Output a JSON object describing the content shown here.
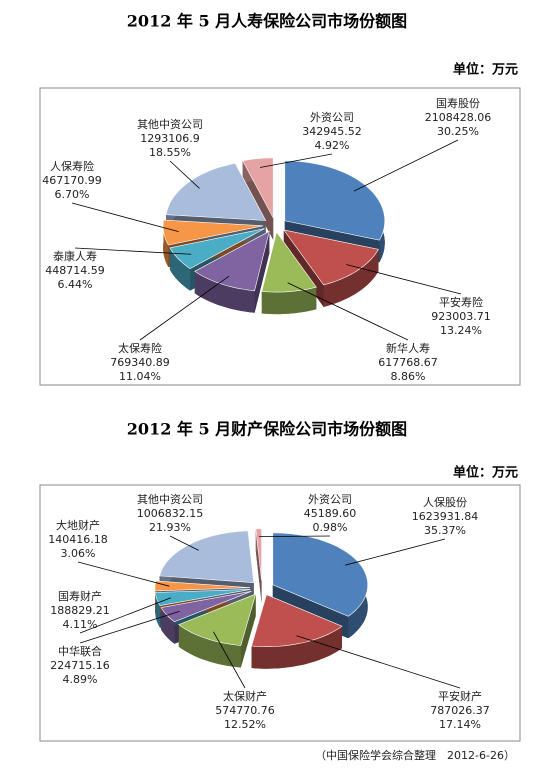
{
  "chart_data": [
    {
      "type": "pie",
      "title": "2012 年 5 月人寿保险公司市场份额图",
      "unit": "单位：万元",
      "labels": [
        "国寿股份",
        "平安寿险",
        "新华人寿",
        "太保寿险",
        "泰康人寿",
        "人保寿险",
        "其他中资公司",
        "外资公司"
      ],
      "values": [
        2108428.06,
        923003.71,
        617768.67,
        769340.89,
        448714.59,
        467170.99,
        1293106.9,
        342945.52
      ],
      "percents": [
        30.25,
        13.24,
        8.86,
        11.04,
        6.44,
        6.7,
        18.55,
        4.92
      ],
      "percent_labels": [
        "30.25%",
        "13.24%",
        "8.86%",
        "11.04%",
        "6.44%",
        "6.70%",
        "18.55%",
        "4.92%"
      ],
      "colors": [
        "#4f81bd",
        "#c0504d",
        "#9bbb59",
        "#8064a2",
        "#4bacc6",
        "#f79646",
        "#a9bcdc",
        "#e6a3a3"
      ]
    },
    {
      "type": "pie",
      "title": "2012 年 5 月财产保险公司市场份额图",
      "unit": "单位：万元",
      "labels": [
        "人保股份",
        "平安财产",
        "太保财产",
        "中华联合",
        "国寿财产",
        "大地财产",
        "其他中资公司",
        "外资公司"
      ],
      "values": [
        1623931.84,
        787026.37,
        574770.76,
        224715.16,
        188829.21,
        140416.18,
        1006832.15,
        45189.6
      ],
      "value_labels": [
        "1623931.84",
        "787026.37",
        "574770.76",
        "224715.16",
        "188829.21",
        "140416.18",
        "1006832.15",
        "45189.60"
      ],
      "percents": [
        35.37,
        17.14,
        12.52,
        4.89,
        4.11,
        3.06,
        21.93,
        0.98
      ],
      "percent_labels": [
        "35.37%",
        "17.14%",
        "12.52%",
        "4.89%",
        "4.11%",
        "3.06%",
        "21.93%",
        "0.98%"
      ],
      "colors": [
        "#4f81bd",
        "#c0504d",
        "#9bbb59",
        "#8064a2",
        "#4bacc6",
        "#f79646",
        "#a9bcdc",
        "#e6a3a3"
      ]
    }
  ],
  "footer": "（中国保险学会综合整理　2012-6-26）"
}
